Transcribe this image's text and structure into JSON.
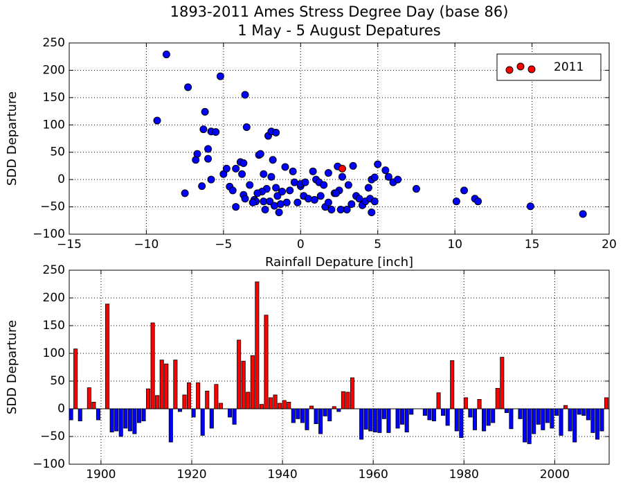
{
  "chart_data": [
    {
      "type": "scatter",
      "title": "1893-2011 Ames Stress Degree Day (base 86)",
      "subtitle": "1 May - 5 August Depatures",
      "x_label": "Rainfall Depature [inch]",
      "y_label": "SDD Departure",
      "xlim": [
        -15,
        20
      ],
      "ylim": [
        -100,
        250
      ],
      "xticks": [
        {
          "value": -15,
          "label": "−15"
        },
        {
          "value": -10,
          "label": "−10"
        },
        {
          "value": -5,
          "label": "−5"
        },
        0,
        5,
        10,
        15,
        20
      ],
      "yticks": [
        {
          "value": -100,
          "label": "−100"
        },
        {
          "value": -50,
          "label": "−50"
        },
        0,
        50,
        100,
        150,
        200,
        250
      ],
      "grid": true,
      "legend": "upper right",
      "series": [
        {
          "color": "#0000ff",
          "x": [
            -8.7,
            -9.3,
            -7.3,
            -7.5,
            -6.8,
            -6.7,
            -6.3,
            -6.2,
            -6.0,
            -5.8,
            -5.5,
            -6.0,
            -6.4,
            -5.8,
            -5.2,
            -5.0,
            -4.8,
            -4.6,
            -4.4,
            -4.2,
            -4.2,
            -3.9,
            -3.8,
            -3.7,
            -3.6,
            -3.6,
            -3.5,
            -3.7,
            -3.3,
            -3.0,
            -2.7,
            -2.6,
            -2.4,
            -2.3,
            -2.2,
            -2.1,
            -1.9,
            -1.8,
            -1.6,
            -1.6,
            -1.5,
            -1.3,
            -1.2,
            -1.0,
            -0.9,
            -0.7,
            -0.5,
            -0.4,
            -0.2,
            0,
            0,
            0.2,
            0.5,
            0.8,
            0.9,
            1.0,
            1.2,
            1.3,
            1.5,
            1.6,
            1.8,
            2.0,
            2.2,
            2.4,
            2.5,
            2.6,
            2.7,
            3.0,
            3.1,
            3.3,
            3.4,
            3.6,
            3.8,
            4.0,
            4.2,
            4.4,
            4.5,
            4.6,
            4.6,
            4.8,
            4.8,
            5.0,
            5.5,
            5.7,
            6.0,
            6.3,
            7.5,
            10.1,
            10.6,
            11.3,
            11.5,
            14.9,
            18.3,
            -2.9,
            -2.5,
            -2.0,
            -1.7,
            -1.4,
            -1.9,
            -2.4,
            -2.8,
            -3.1,
            0.3,
            1.8,
            2.3
          ],
          "values": [
            229,
            108,
            169,
            -25,
            36,
            47,
            92,
            124,
            56,
            88,
            87,
            38,
            -12,
            0,
            189,
            10,
            20,
            -13,
            -20,
            -50,
            20,
            32,
            10,
            -28,
            -35,
            155,
            96,
            30,
            -10,
            -37,
            45,
            47,
            -40,
            -55,
            -17,
            80,
            88,
            36,
            86,
            -15,
            -30,
            -45,
            -22,
            23,
            -42,
            -20,
            15,
            -5,
            -42,
            -12,
            -8,
            -30,
            -35,
            15,
            -37,
            0,
            -5,
            -30,
            -10,
            -50,
            12,
            -55,
            -25,
            24,
            -20,
            -55,
            5,
            -55,
            -10,
            -45,
            25,
            -30,
            -35,
            -47,
            -40,
            -15,
            -35,
            -60,
            0,
            -40,
            4,
            28,
            17,
            5,
            -5,
            0,
            -17,
            -40,
            -20,
            -35,
            -40,
            -49,
            -63,
            -40,
            -22,
            -40,
            -48,
            -60,
            5,
            10,
            -25,
            -42,
            -5,
            -42,
            -25
          ]
        },
        {
          "name": "2011",
          "color": "#ff0000",
          "x": [
            2.7
          ],
          "values": [
            20
          ]
        }
      ]
    },
    {
      "type": "bar",
      "y_label": "SDD Departure",
      "xlim": [
        1893,
        2012
      ],
      "ylim": [
        -100,
        250
      ],
      "xticks": [
        1900,
        1920,
        1940,
        1960,
        1980,
        2000
      ],
      "yticks": [
        {
          "value": -100,
          "label": "−100"
        },
        {
          "value": -50,
          "label": "−50"
        },
        0,
        50,
        100,
        150,
        200,
        250
      ],
      "grid": true,
      "positive_color": "#ff0000",
      "negative_color": "#0000ff",
      "x": [
        1893,
        1894,
        1895,
        1896,
        1897,
        1898,
        1899,
        1900,
        1901,
        1902,
        1903,
        1904,
        1905,
        1906,
        1907,
        1908,
        1909,
        1910,
        1911,
        1912,
        1913,
        1914,
        1915,
        1916,
        1917,
        1918,
        1919,
        1920,
        1921,
        1922,
        1923,
        1924,
        1925,
        1926,
        1927,
        1928,
        1929,
        1930,
        1931,
        1932,
        1933,
        1934,
        1935,
        1936,
        1937,
        1938,
        1939,
        1940,
        1941,
        1942,
        1943,
        1944,
        1945,
        1946,
        1947,
        1948,
        1949,
        1950,
        1951,
        1952,
        1953,
        1954,
        1955,
        1956,
        1957,
        1958,
        1959,
        1960,
        1961,
        1962,
        1963,
        1964,
        1965,
        1966,
        1967,
        1968,
        1969,
        1970,
        1971,
        1972,
        1973,
        1974,
        1975,
        1976,
        1977,
        1978,
        1979,
        1980,
        1981,
        1982,
        1983,
        1984,
        1985,
        1986,
        1987,
        1988,
        1989,
        1990,
        1991,
        1992,
        1993,
        1994,
        1995,
        1996,
        1997,
        1998,
        1999,
        2000,
        2001,
        2002,
        2003,
        2004,
        2005,
        2006,
        2007,
        2008,
        2009,
        2010,
        2011
      ],
      "values": [
        -20,
        108,
        -22,
        0,
        38,
        12,
        -20,
        0,
        189,
        -42,
        -40,
        -50,
        -35,
        -40,
        -45,
        -25,
        -22,
        36,
        155,
        24,
        88,
        81,
        -60,
        88,
        -5,
        25,
        47,
        -15,
        47,
        -48,
        32,
        -35,
        44,
        10,
        0,
        -15,
        -28,
        124,
        86,
        30,
        96,
        229,
        8,
        169,
        20,
        25,
        10,
        15,
        12,
        -25,
        -18,
        -25,
        -38,
        5,
        -27,
        -45,
        -13,
        -22,
        4,
        -5,
        31,
        30,
        56,
        0,
        -55,
        -37,
        -40,
        -42,
        -43,
        -18,
        -43,
        0,
        -35,
        -28,
        -42,
        -10,
        0,
        0,
        -12,
        -20,
        -22,
        29,
        -12,
        -30,
        87,
        -40,
        -52,
        20,
        -15,
        -38,
        17,
        -40,
        -30,
        -25,
        37,
        93,
        -7,
        -36,
        0,
        -18,
        -60,
        -63,
        -45,
        -28,
        -38,
        -25,
        -35,
        -12,
        -48,
        6,
        -40,
        -60,
        -10,
        -12,
        -20,
        -43,
        -55,
        -40,
        20
      ]
    }
  ]
}
